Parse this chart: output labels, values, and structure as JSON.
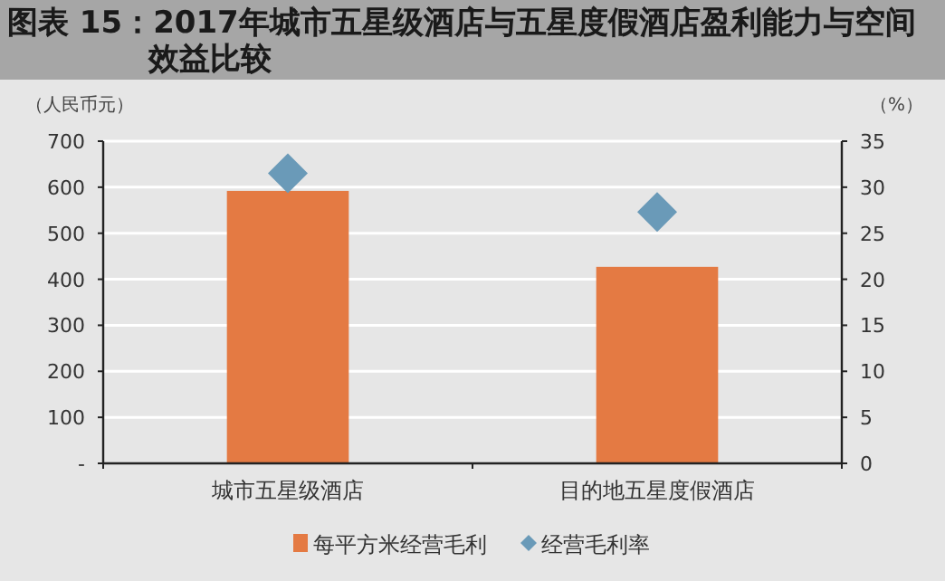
{
  "chart_data": {
    "type": "bar",
    "title": "图表 15：2017年城市五星级酒店与五星度假酒店盈利能力与空间效益比较",
    "ylabel": "（人民币元）",
    "y2label": "（%）",
    "categories": [
      "城市五星级酒店",
      "目的地五星度假酒店"
    ],
    "series": [
      {
        "name": "每平方米经营毛利",
        "color": "#e47a43",
        "values": [
          592,
          427
        ]
      },
      {
        "name": "经营毛利率",
        "type": "scatter",
        "axis": "y2",
        "marker": "diamond",
        "color": "#6a9ab8",
        "values": [
          31.5,
          27.3
        ]
      }
    ],
    "ylim": [
      0,
      700
    ],
    "yticks": [
      {
        "value": 0,
        "label": "-"
      },
      100,
      200,
      300,
      400,
      500,
      600,
      700
    ],
    "y2lim": [
      0,
      35
    ],
    "y2ticks": [
      0,
      5,
      10,
      15,
      20,
      25,
      30,
      35
    ],
    "grid": "y",
    "legend": "bottom"
  }
}
